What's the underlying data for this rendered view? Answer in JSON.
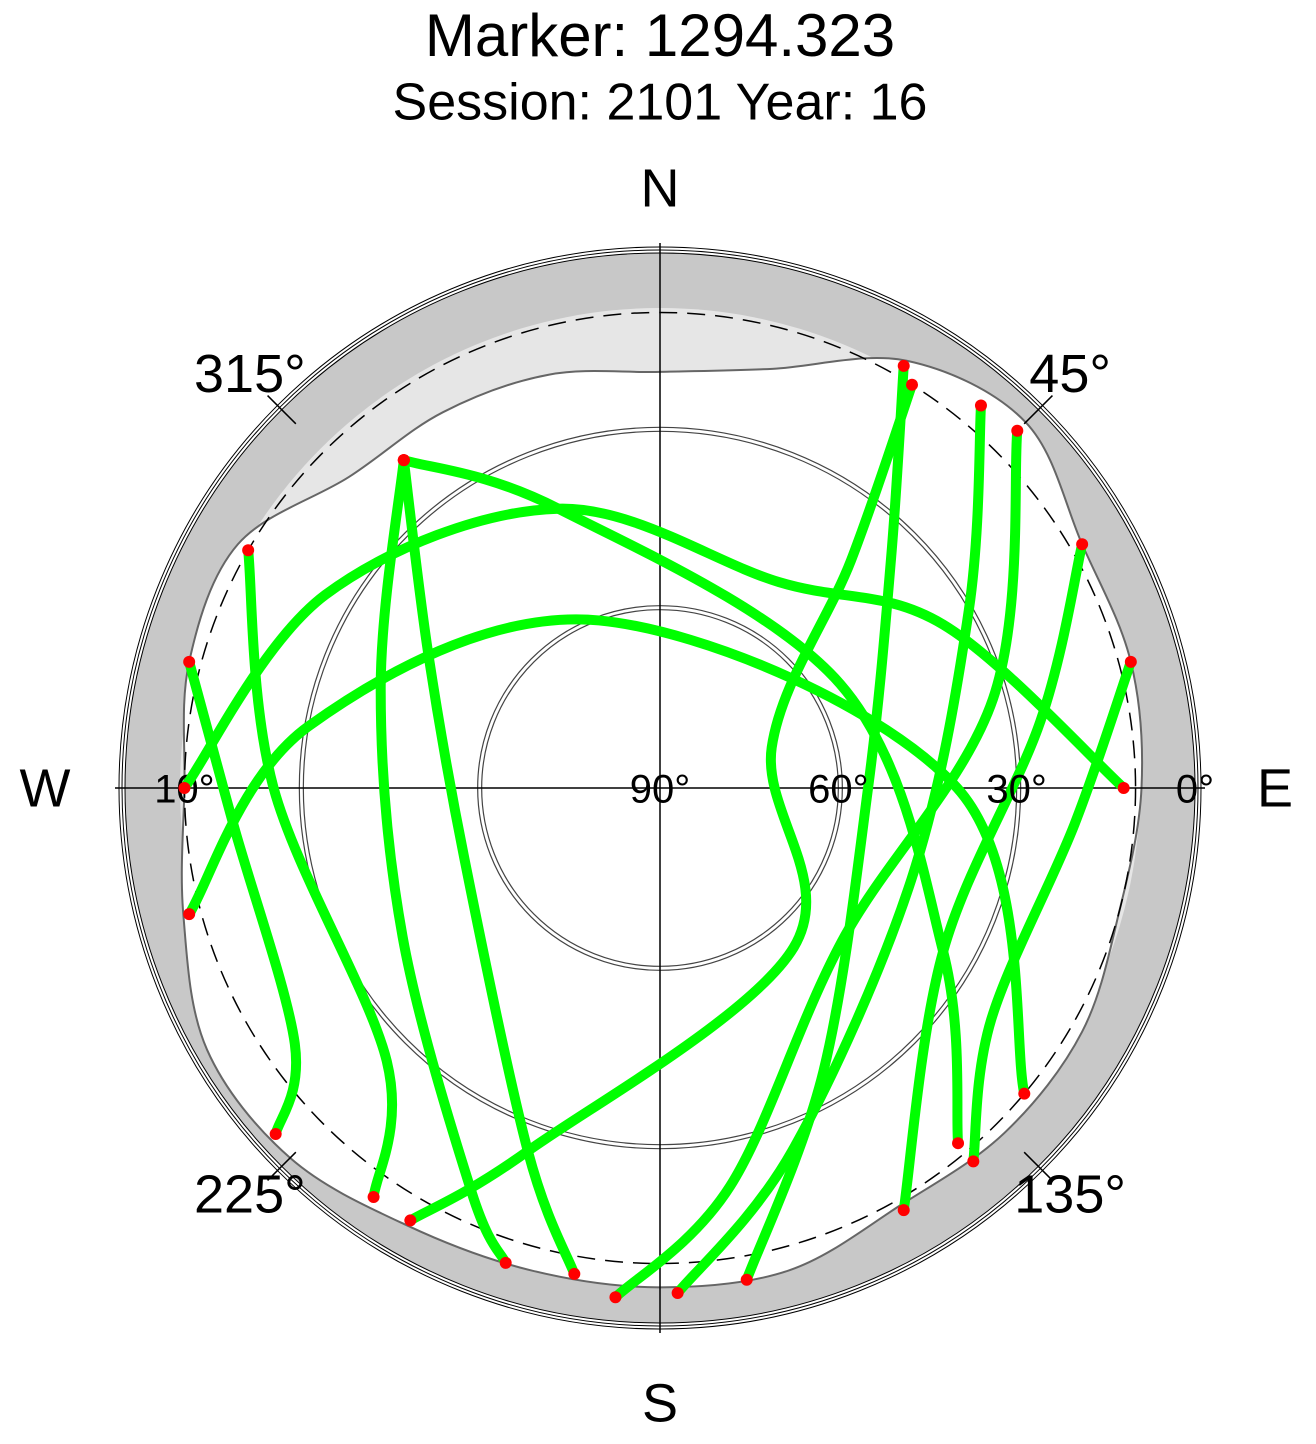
{
  "chart_data": {
    "type": "polar",
    "title": "Marker: 1294.323",
    "subtitle": "Session: 2101 Year: 16",
    "elim": [
      0,
      90
    ],
    "elticks": [
      {
        "value": 0,
        "label": "0°"
      },
      {
        "value": 30,
        "label": "30°"
      },
      {
        "value": 60,
        "label": "60°"
      },
      {
        "value": 90,
        "label": "90°"
      }
    ],
    "mask_ring": {
      "value": 10,
      "label": "10°"
    },
    "azticks": [
      {
        "value": 45,
        "label": "45°"
      },
      {
        "value": 135,
        "label": "135°"
      },
      {
        "value": 225,
        "label": "225°"
      },
      {
        "value": 315,
        "label": "315°"
      }
    ],
    "cardinals": [
      {
        "value": 0,
        "label": "N"
      },
      {
        "value": 90,
        "label": "E"
      },
      {
        "value": 180,
        "label": "S"
      },
      {
        "value": 270,
        "label": "W"
      }
    ],
    "horizon_mask": {
      "color": "#e6e6e6",
      "az": [
        0,
        15,
        30,
        45,
        60,
        75,
        90,
        105,
        120,
        135,
        150,
        165,
        180,
        195,
        210,
        225,
        240,
        255,
        270,
        285,
        300,
        315,
        330,
        345
      ],
      "el": [
        20,
        17,
        7,
        3,
        8,
        8,
        9,
        10,
        8,
        8,
        9,
        6,
        6,
        6,
        5,
        2,
        2,
        7,
        10,
        8,
        8,
        16,
        17,
        18
      ]
    },
    "endpoint_color": "#ff0000",
    "series": [
      {
        "color": "#00ff00",
        "az": [
          30,
          45,
          90,
          150,
          170
        ],
        "el": [
          8,
          35,
          55,
          35,
          6
        ]
      },
      {
        "color": "#00ff00",
        "az": [
          40,
          60,
          110,
          160,
          178
        ],
        "el": [
          6,
          30,
          45,
          25,
          5
        ]
      },
      {
        "color": "#00ff00",
        "az": [
          45,
          75,
          130,
          170,
          185
        ],
        "el": [
          5,
          32,
          50,
          22,
          4
        ]
      },
      {
        "color": "#00ff00",
        "az": [
          32,
          40,
          70,
          140,
          200,
          210
        ],
        "el": [
          10,
          40,
          70,
          55,
          25,
          6
        ]
      },
      {
        "color": "#00ff00",
        "az": [
          60,
          80,
          120,
          150
        ],
        "el": [
          8,
          25,
          35,
          8
        ]
      },
      {
        "color": "#00ff00",
        "az": [
          75,
          95,
          125,
          140
        ],
        "el": [
          8,
          20,
          22,
          8
        ]
      },
      {
        "color": "#00ff00",
        "az": [
          322,
          300,
          250,
          200,
          190
        ],
        "el": [
          20,
          45,
          55,
          25,
          7
        ]
      },
      {
        "color": "#00ff00",
        "az": [
          322,
          290,
          240,
          205,
          198
        ],
        "el": [
          20,
          40,
          40,
          15,
          6
        ]
      },
      {
        "color": "#00ff00",
        "az": [
          300,
          270,
          225,
          215
        ],
        "el": [
          10,
          25,
          25,
          6
        ]
      },
      {
        "color": "#00ff00",
        "az": [
          285,
          265,
          235,
          228
        ],
        "el": [
          8,
          18,
          15,
          3
        ]
      },
      {
        "color": "#00ff00",
        "az": [
          322,
          340,
          60,
          120,
          140
        ],
        "el": [
          20,
          40,
          55,
          35,
          12
        ]
      },
      {
        "color": "#00ff00",
        "az": [
          270,
          300,
          340,
          30,
          60,
          90
        ],
        "el": [
          10,
          25,
          40,
          50,
          35,
          12
        ]
      },
      {
        "color": "#00ff00",
        "az": [
          255,
          280,
          340,
          90,
          130
        ],
        "el": [
          8,
          30,
          60,
          40,
          10
        ]
      }
    ]
  }
}
